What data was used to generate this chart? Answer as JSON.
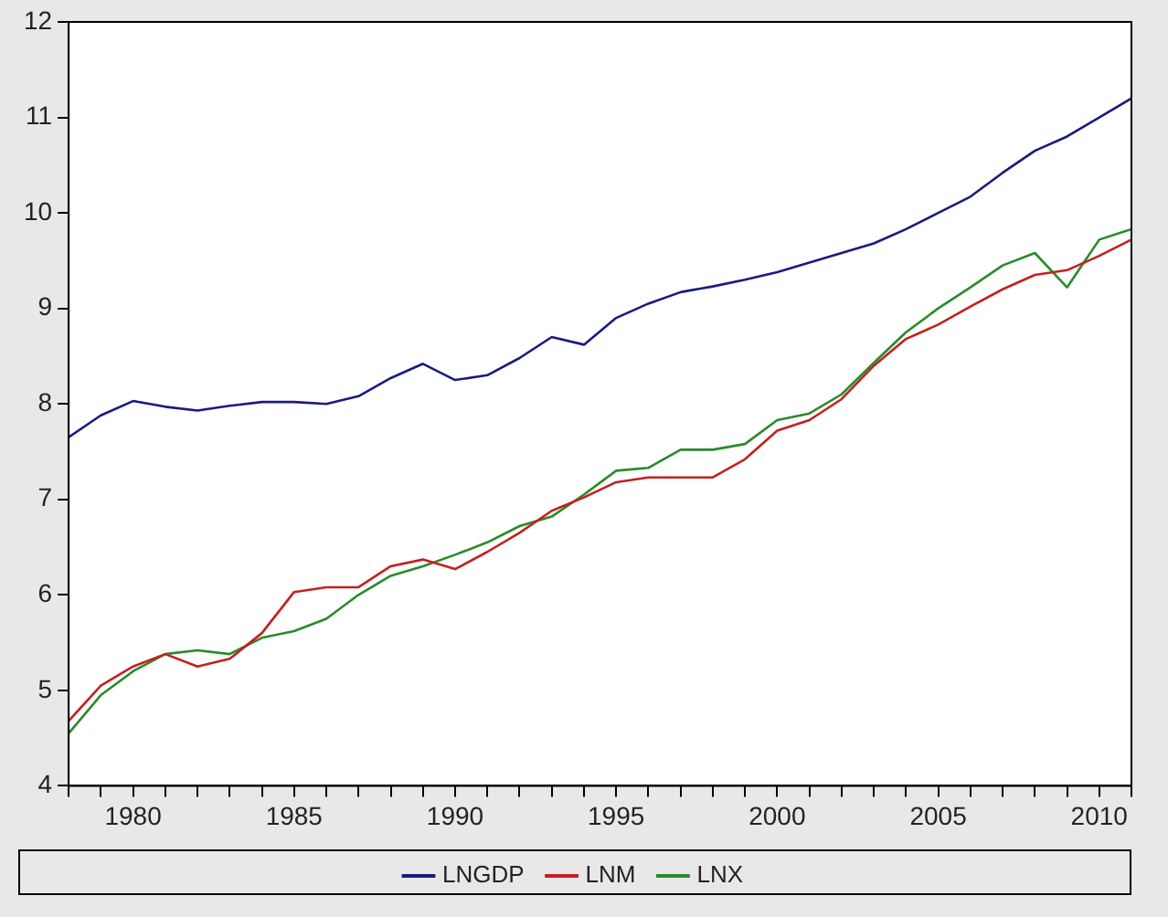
{
  "chart_data": {
    "type": "line",
    "x": [
      1978,
      1979,
      1980,
      1981,
      1982,
      1983,
      1984,
      1985,
      1986,
      1987,
      1988,
      1989,
      1990,
      1991,
      1992,
      1993,
      1994,
      1995,
      1996,
      1997,
      1998,
      1999,
      2000,
      2001,
      2002,
      2003,
      2004,
      2005,
      2006,
      2007,
      2008,
      2009,
      2010,
      2011
    ],
    "series": [
      {
        "name": "LNGDP",
        "color": "#1a1a80",
        "values": [
          7.65,
          7.88,
          8.03,
          7.97,
          7.93,
          7.98,
          8.02,
          8.02,
          8.0,
          8.08,
          8.27,
          8.42,
          8.25,
          8.3,
          8.48,
          8.7,
          8.62,
          8.9,
          9.05,
          9.17,
          9.23,
          9.3,
          9.38,
          9.48,
          9.58,
          9.68,
          9.83,
          10.0,
          10.17,
          10.42,
          10.65,
          10.8,
          11.0,
          11.2
        ]
      },
      {
        "name": "LNM",
        "color": "#c42020",
        "values": [
          4.68,
          5.05,
          5.25,
          5.38,
          5.25,
          5.33,
          5.6,
          6.03,
          6.08,
          6.08,
          6.3,
          6.37,
          6.27,
          6.45,
          6.65,
          6.88,
          7.02,
          7.18,
          7.23,
          7.23,
          7.23,
          7.42,
          7.72,
          7.83,
          8.05,
          8.4,
          8.68,
          8.83,
          9.02,
          9.2,
          9.35,
          9.4,
          9.55,
          9.72
        ]
      },
      {
        "name": "LNX",
        "color": "#2a8a2a",
        "values": [
          4.55,
          4.95,
          5.2,
          5.38,
          5.42,
          5.38,
          5.55,
          5.62,
          5.75,
          6.0,
          6.2,
          6.3,
          6.42,
          6.55,
          6.72,
          6.82,
          7.05,
          7.3,
          7.33,
          7.52,
          7.52,
          7.58,
          7.83,
          7.9,
          8.1,
          8.43,
          8.75,
          9.0,
          9.22,
          9.45,
          9.58,
          9.22,
          9.72,
          9.83
        ]
      }
    ],
    "xlim": [
      1978,
      2011
    ],
    "xticks": [
      {
        "value": 1978,
        "label": null
      },
      {
        "value": 1979,
        "label": null
      },
      1980,
      {
        "value": 1981,
        "label": null
      },
      {
        "value": 1982,
        "label": null
      },
      {
        "value": 1983,
        "label": null
      },
      {
        "value": 1984,
        "label": null
      },
      1985,
      {
        "value": 1986,
        "label": null
      },
      {
        "value": 1987,
        "label": null
      },
      {
        "value": 1988,
        "label": null
      },
      {
        "value": 1989,
        "label": null
      },
      1990,
      {
        "value": 1991,
        "label": null
      },
      {
        "value": 1992,
        "label": null
      },
      {
        "value": 1993,
        "label": null
      },
      {
        "value": 1994,
        "label": null
      },
      1995,
      {
        "value": 1996,
        "label": null
      },
      {
        "value": 1997,
        "label": null
      },
      {
        "value": 1998,
        "label": null
      },
      {
        "value": 1999,
        "label": null
      },
      2000,
      {
        "value": 2001,
        "label": null
      },
      {
        "value": 2002,
        "label": null
      },
      {
        "value": 2003,
        "label": null
      },
      {
        "value": 2004,
        "label": null
      },
      2005,
      {
        "value": 2006,
        "label": null
      },
      {
        "value": 2007,
        "label": null
      },
      {
        "value": 2008,
        "label": null
      },
      {
        "value": 2009,
        "label": null
      },
      2010,
      {
        "value": 2011,
        "label": null
      }
    ],
    "ylim": [
      4,
      12
    ],
    "yticks": [
      4,
      5,
      6,
      7,
      8,
      9,
      10,
      11,
      12
    ],
    "grid": false,
    "legend": "bottom",
    "marker": "none",
    "line_style": "solid"
  }
}
